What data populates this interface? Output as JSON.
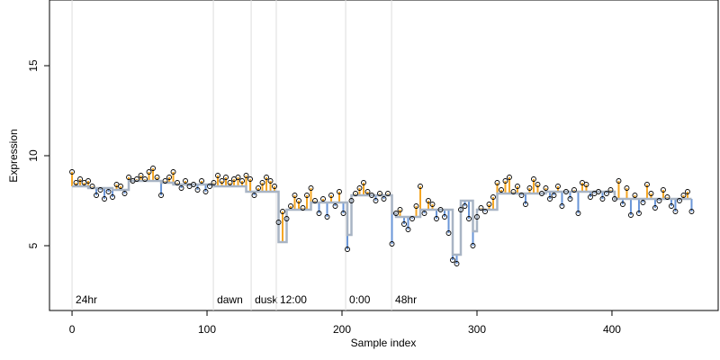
{
  "chart_data": {
    "type": "scatter",
    "x_label": "Sample index",
    "y_label": "Expression",
    "xlim": [
      -16.7,
      478.7
    ],
    "ylim": [
      1.4,
      18.65
    ],
    "xticks": [
      0,
      100,
      200,
      300,
      400
    ],
    "yticks": [
      5,
      10,
      15
    ],
    "point_color": "#000000",
    "line_color": "#a8b4c4",
    "up_color": "#f5a623",
    "down_color": "#6a96d8",
    "event_color": "#dddddd",
    "event_text_color": "#aaaaaa",
    "events": [
      {
        "x": 0,
        "label": "24hr"
      },
      {
        "x": 104.7,
        "label": "dawn"
      },
      {
        "x": 132.7,
        "label": "dusk"
      },
      {
        "x": 151.3,
        "label": "12:00"
      },
      {
        "x": 202.7,
        "label": "0:00"
      },
      {
        "x": 236.7,
        "label": "48hr"
      }
    ],
    "x": [
      0,
      3,
      6,
      9,
      12,
      15,
      18,
      21,
      24,
      27,
      30,
      33,
      36,
      39,
      42,
      45,
      48,
      51,
      54,
      57,
      60,
      63,
      66,
      69,
      72,
      75,
      78,
      81,
      84,
      87,
      90,
      93,
      96,
      99,
      102,
      105,
      108,
      111,
      114,
      117,
      120,
      123,
      126,
      129,
      132,
      135,
      138,
      141,
      144,
      147,
      150,
      153,
      156,
      159,
      162,
      165,
      168,
      171,
      174,
      177,
      180,
      183,
      186,
      189,
      192,
      195,
      198,
      201,
      204,
      207,
      210,
      213,
      216,
      219,
      222,
      225,
      228,
      231,
      234,
      237,
      240,
      243,
      246,
      249,
      252,
      255,
      258,
      261,
      264,
      267,
      270,
      273,
      276,
      279,
      282,
      285,
      288,
      291,
      294,
      297,
      300,
      303,
      306,
      309,
      312,
      315,
      318,
      321,
      324,
      327,
      330,
      333,
      336,
      339,
      342,
      345,
      348,
      351,
      354,
      357,
      360,
      363,
      366,
      369,
      372,
      375,
      378,
      381,
      384,
      387,
      390,
      393,
      396,
      399,
      402,
      405,
      408,
      411,
      414,
      417,
      420,
      423,
      426,
      429,
      432,
      435,
      438,
      441,
      444,
      447,
      450,
      453,
      456,
      459
    ],
    "values": [
      9.1,
      8.5,
      8.7,
      8.5,
      8.6,
      8.3,
      7.8,
      8.1,
      7.6,
      8.0,
      7.7,
      8.4,
      8.3,
      7.9,
      8.8,
      8.6,
      8.7,
      8.9,
      8.7,
      9.1,
      9.3,
      8.8,
      7.8,
      8.6,
      8.8,
      9.1,
      8.5,
      8.2,
      8.6,
      8.3,
      8.4,
      8.1,
      8.6,
      8.0,
      8.3,
      8.5,
      8.9,
      8.6,
      8.8,
      8.5,
      8.7,
      8.8,
      8.6,
      8.9,
      8.7,
      7.8,
      8.2,
      8.5,
      8.8,
      8.6,
      8.3,
      6.3,
      6.9,
      6.5,
      7.2,
      7.8,
      7.5,
      7.1,
      7.8,
      8.2,
      7.5,
      6.8,
      7.6,
      6.6,
      7.8,
      7.2,
      8.0,
      6.8,
      4.8,
      7.5,
      7.9,
      8.2,
      8.5,
      8.0,
      7.8,
      7.5,
      7.9,
      7.6,
      7.9,
      5.1,
      6.8,
      7.0,
      6.2,
      5.9,
      6.5,
      7.2,
      8.3,
      6.8,
      7.5,
      7.3,
      6.5,
      7.0,
      6.6,
      5.7,
      4.2,
      4.0,
      7.0,
      7.2,
      6.5,
      5.0,
      6.6,
      7.1,
      6.9,
      7.3,
      7.7,
      8.5,
      8.1,
      8.6,
      8.8,
      8.0,
      8.3,
      7.8,
      7.3,
      8.2,
      8.7,
      8.4,
      7.9,
      8.2,
      7.6,
      7.8,
      8.3,
      7.2,
      8.0,
      7.6,
      8.1,
      6.8,
      8.5,
      8.4,
      7.7,
      7.9,
      8.0,
      7.6,
      7.9,
      8.1,
      7.6,
      8.6,
      7.3,
      8.2,
      6.7,
      7.8,
      6.8,
      7.4,
      8.4,
      7.9,
      7.1,
      7.5,
      8.1,
      7.7,
      7.2,
      6.9,
      7.5,
      7.8,
      8.0,
      6.9
    ],
    "fit": [
      8.3,
      8.3,
      8.3,
      8.3,
      8.2,
      8.2,
      8.2,
      8.2,
      8.2,
      8.2,
      8.1,
      8.1,
      8.1,
      8.1,
      8.6,
      8.6,
      8.6,
      8.6,
      8.6,
      8.6,
      8.6,
      8.6,
      8.5,
      8.5,
      8.5,
      8.4,
      8.4,
      8.4,
      8.4,
      8.4,
      8.4,
      8.4,
      8.4,
      8.4,
      8.4,
      8.3,
      8.3,
      8.3,
      8.3,
      8.3,
      8.3,
      8.3,
      8.3,
      8.0,
      8.0,
      8.0,
      8.0,
      8.0,
      8.0,
      8.0,
      8.0,
      5.2,
      5.2,
      7.0,
      7.0,
      7.0,
      7.0,
      7.0,
      7.0,
      7.4,
      7.4,
      7.4,
      7.4,
      7.4,
      7.4,
      7.4,
      7.4,
      7.4,
      5.6,
      7.8,
      7.8,
      7.8,
      7.8,
      7.8,
      7.8,
      7.8,
      7.8,
      7.8,
      7.8,
      6.8,
      6.6,
      6.6,
      6.6,
      6.6,
      6.6,
      6.6,
      7.0,
      7.0,
      7.0,
      7.0,
      7.0,
      7.0,
      7.0,
      7.0,
      4.5,
      4.5,
      7.5,
      7.5,
      7.5,
      5.8,
      7.0,
      7.0,
      7.0,
      7.0,
      7.0,
      7.9,
      7.9,
      7.9,
      7.9,
      7.9,
      7.9,
      7.9,
      7.9,
      7.9,
      7.9,
      7.9,
      7.9,
      8.0,
      8.0,
      8.0,
      8.0,
      8.0,
      8.0,
      8.0,
      8.0,
      8.0,
      8.0,
      8.0,
      8.0,
      8.0,
      8.0,
      8.0,
      8.0,
      8.0,
      7.6,
      7.6,
      7.6,
      7.6,
      7.6,
      7.6,
      7.6,
      7.6,
      7.6,
      7.6,
      7.6,
      7.6,
      7.6,
      7.6,
      7.6,
      7.6,
      7.6,
      7.6,
      7.6,
      7.6
    ]
  }
}
